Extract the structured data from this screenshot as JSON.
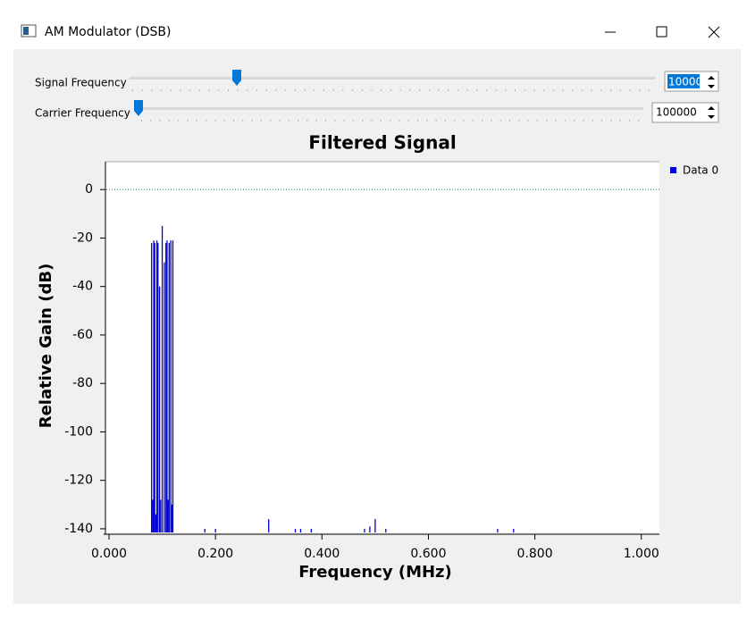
{
  "window": {
    "title": "AM Modulator (DSB)"
  },
  "controls": [
    {
      "label": "Signal Frequency",
      "value": 10000
    },
    {
      "label": "Carrier Frequency",
      "value": 100000
    }
  ],
  "chart_data": {
    "type": "stem",
    "title": "Filtered Signal",
    "x_label": "Frequency (MHz)",
    "y_label": "Relative Gain (dB)",
    "xlim": [
      -0.0067,
      1.034
    ],
    "ylim": [
      -141.5,
      11.5
    ],
    "xticks": [
      {
        "value": 0,
        "label": "0.000"
      },
      {
        "value": 0.2,
        "label": "0.200"
      },
      {
        "value": 0.4,
        "label": "0.400"
      },
      {
        "value": 0.6,
        "label": "0.600"
      },
      {
        "value": 0.8,
        "label": "0.800"
      },
      {
        "value": 1,
        "label": "1.000"
      }
    ],
    "yticks": [
      0,
      -20,
      -40,
      -60,
      -80,
      -100,
      -120,
      -140
    ],
    "reference_line": 0,
    "legend": "right",
    "series": [
      {
        "name": "Data 0",
        "color": "#0000dd",
        "x": [
          0.08,
          0.082,
          0.084,
          0.086,
          0.088,
          0.09,
          0.092,
          0.095,
          0.097,
          0.1,
          0.104,
          0.107,
          0.109,
          0.111,
          0.113,
          0.116,
          0.118,
          0.12,
          0.18,
          0.2,
          0.3,
          0.35,
          0.36,
          0.38,
          0.48,
          0.49,
          0.5,
          0.52,
          0.73,
          0.76
        ],
        "values": [
          -22,
          -128,
          -21,
          -22,
          -134,
          -21,
          -22,
          -40,
          -128,
          -15,
          -30,
          -22,
          -21,
          -128,
          -22,
          -21,
          -130,
          -21,
          -140,
          -140,
          -136,
          -140,
          -140,
          -140,
          -140,
          -139,
          -136,
          -140,
          -140,
          -140
        ]
      }
    ]
  }
}
